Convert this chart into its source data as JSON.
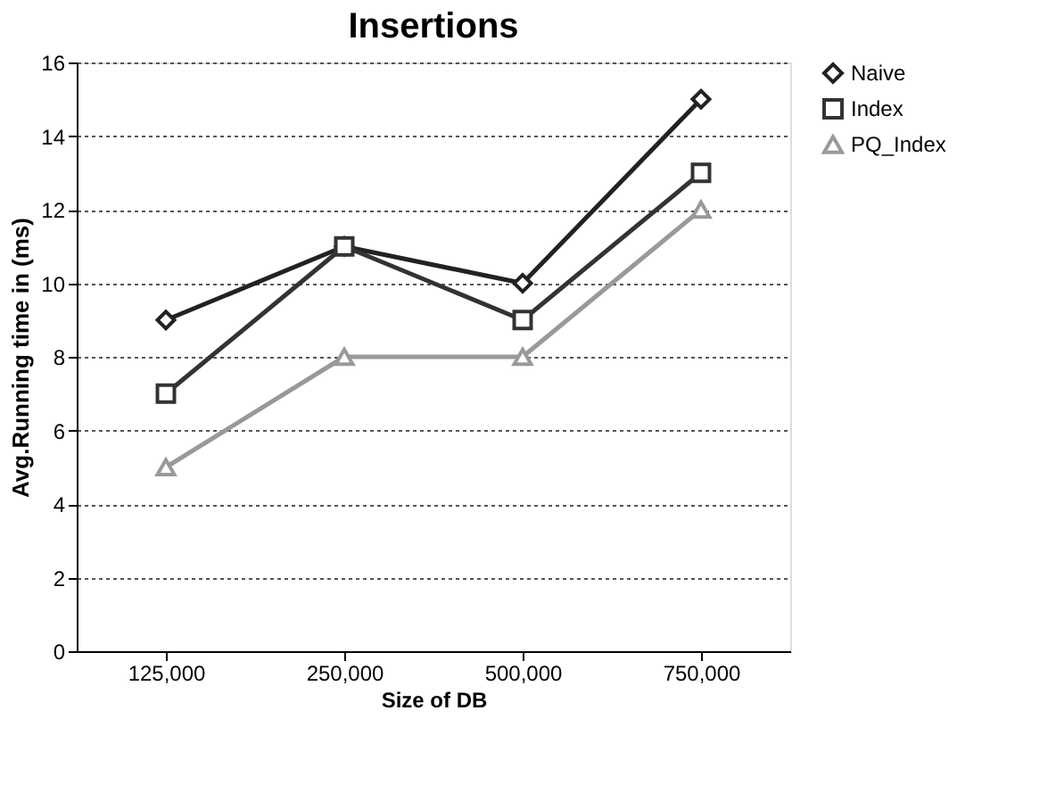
{
  "chart_data": {
    "type": "line",
    "title": "Insertions",
    "xlabel": "Size of DB",
    "ylabel": "Avg.Running time  in (ms)",
    "categories": [
      "125,000",
      "250,000",
      "500,000",
      "750,000"
    ],
    "series": [
      {
        "name": "Naive",
        "color": "#222222",
        "marker": "diamond",
        "values": [
          9,
          11,
          10,
          15
        ]
      },
      {
        "name": "Index",
        "color": "#333333",
        "marker": "square",
        "values": [
          7,
          11,
          9,
          13
        ]
      },
      {
        "name": "PQ_Index",
        "color": "#999999",
        "marker": "triangle",
        "values": [
          5,
          8,
          8,
          12
        ]
      }
    ],
    "ylim": [
      0,
      16
    ],
    "yticks": [
      0,
      2,
      4,
      6,
      8,
      10,
      12,
      14,
      16
    ],
    "grid": "y",
    "legend": "right",
    "line_style": "solid"
  }
}
